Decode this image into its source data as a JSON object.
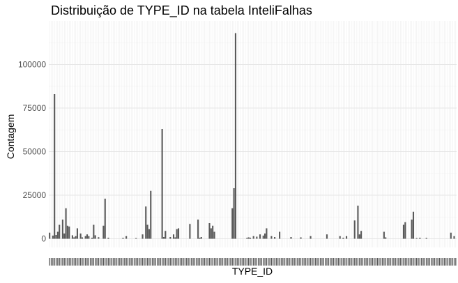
{
  "chart_data": {
    "type": "bar",
    "title": "Distribuição de TYPE_ID na tabela InteliFalhas",
    "xlabel": "TYPE_ID",
    "ylabel": "Contagem",
    "ylim": [
      -5000,
      125000
    ],
    "yticks": [
      0,
      25000,
      50000,
      75000,
      100000
    ],
    "ytick_labels": [
      "0",
      "25000",
      "50000",
      "75000",
      "100000"
    ],
    "grid": true,
    "legend": "none",
    "bar_color": "#595959",
    "x_tick_labels_note": "illegible overlapping category labels",
    "values": [
      3500,
      0,
      1800,
      83000,
      2200,
      4000,
      8000,
      0,
      11000,
      3000,
      17500,
      7500,
      7000,
      0,
      2000,
      800,
      1500,
      6000,
      0,
      3000,
      800,
      0,
      1500,
      2500,
      1500,
      0,
      600,
      8000,
      2000,
      0,
      900,
      0,
      0,
      7500,
      23000,
      0,
      600,
      0,
      0,
      0,
      0,
      0,
      0,
      0,
      0,
      500,
      0,
      1500,
      0,
      0,
      0,
      0,
      0,
      400,
      0,
      0,
      0,
      2500,
      0,
      18500,
      8000,
      5500,
      27500,
      0,
      0,
      0,
      0,
      0,
      0,
      63000,
      1000,
      4500,
      0,
      0,
      1000,
      0,
      2500,
      800,
      5500,
      6000,
      0,
      0,
      0,
      0,
      0,
      0,
      8500,
      0,
      0,
      0,
      0,
      11000,
      600,
      1000,
      0,
      0,
      0,
      0,
      9000,
      6000,
      7500,
      4000,
      0,
      0,
      0,
      0,
      0,
      0,
      0,
      0,
      0,
      0,
      17500,
      29000,
      118000,
      0,
      0,
      0,
      0,
      0,
      0,
      500,
      800,
      600,
      0,
      1500,
      0,
      1200,
      0,
      2500,
      0,
      1800,
      3000,
      6000,
      0,
      0,
      1500,
      0,
      1000,
      0,
      0,
      4000,
      0,
      0,
      0,
      0,
      0,
      0,
      1000,
      0,
      0,
      0,
      0,
      0,
      800,
      0,
      0,
      0,
      0,
      0,
      1500,
      0,
      0,
      0,
      0,
      0,
      0,
      0,
      0,
      0,
      2500,
      0,
      0,
      0,
      0,
      0,
      0,
      0,
      1500,
      0,
      600,
      0,
      1500,
      0,
      0,
      0,
      0,
      10500,
      0,
      19000,
      2500,
      4500,
      0,
      0,
      0,
      0,
      0,
      0,
      0,
      0,
      0,
      0,
      0,
      0,
      0,
      4000,
      800,
      0,
      0,
      0,
      0,
      0,
      0,
      0,
      0,
      0,
      0,
      8000,
      9500,
      0,
      0,
      0,
      11000,
      15500,
      0,
      400,
      0,
      600,
      0,
      0,
      0,
      500,
      0,
      0,
      0,
      0,
      0,
      0,
      0,
      0,
      0,
      0,
      0,
      0,
      0,
      0,
      3500,
      0,
      1500,
      0
    ]
  }
}
